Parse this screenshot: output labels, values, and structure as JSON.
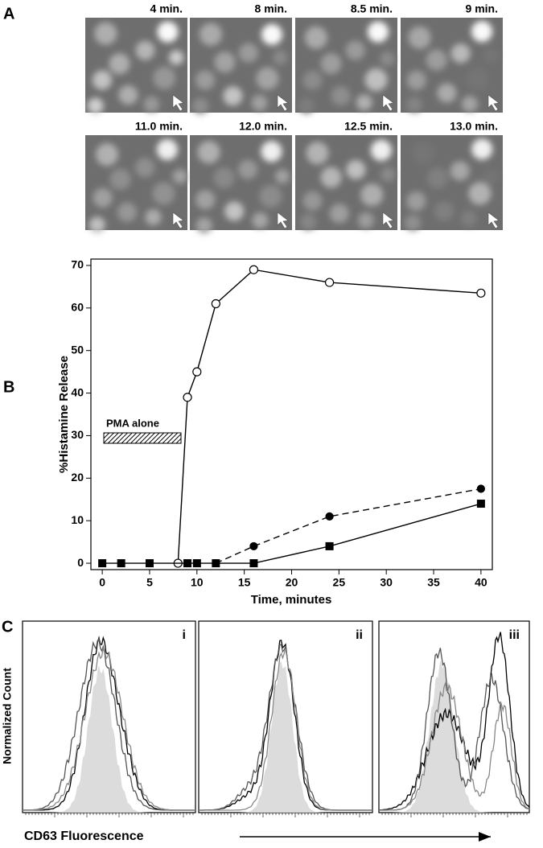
{
  "panel_labels": [
    "A",
    "B",
    "C"
  ],
  "micrographs": {
    "times": [
      "4 min.",
      "8 min.",
      "8.5 min.",
      "9 min.",
      "11.0 min.",
      "12.0 min.",
      "12.5 min.",
      "13.0 min."
    ]
  },
  "chart_data": {
    "type": "line",
    "x_label": "Time, minutes",
    "y_label": "%Histamine Release",
    "annotation": "PMA alone",
    "series": [
      {
        "x": [
          8,
          9,
          10,
          12,
          16,
          24,
          40
        ],
        "values": [
          0,
          39,
          45,
          61,
          69,
          66,
          63.5
        ],
        "color": "#000000",
        "marker": "circle-open",
        "line_style": "solid"
      },
      {
        "x": [
          12,
          16,
          24,
          40
        ],
        "values": [
          0,
          4,
          11,
          17.5
        ],
        "color": "#000000",
        "marker": "circle-filled",
        "line_style": "dashed"
      },
      {
        "x": [
          0,
          2,
          5,
          9,
          10,
          12,
          16,
          24,
          40
        ],
        "values": [
          0,
          0,
          0,
          0,
          0,
          0,
          0,
          4,
          14
        ],
        "color": "#000000",
        "marker": "square-filled",
        "line_style": "solid"
      }
    ],
    "xlim": [
      -1.2,
      41.2
    ],
    "ylim": [
      -1.5,
      71.5
    ],
    "xticks": [
      0,
      5,
      10,
      15,
      20,
      25,
      30,
      35,
      40
    ],
    "yticks": [
      0,
      10,
      20,
      30,
      40,
      50,
      60,
      70
    ]
  },
  "histograms": {
    "panel_labels": [
      "i",
      "ii",
      "iii"
    ],
    "y_label": "Normalized Count",
    "x_label": "CD63 Fluorescence"
  }
}
